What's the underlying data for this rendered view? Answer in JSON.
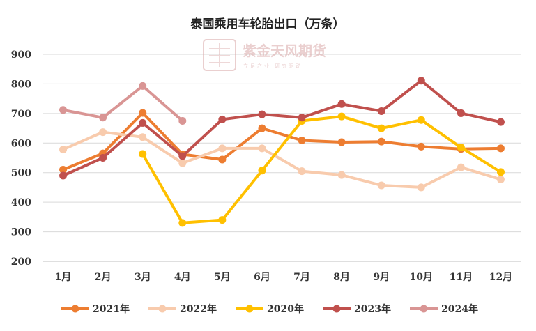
{
  "chart_data": {
    "type": "line",
    "title": "泰国乘用车轮胎出口（万条）",
    "categories": [
      "1月",
      "2月",
      "3月",
      "4月",
      "5月",
      "6月",
      "7月",
      "8月",
      "9月",
      "10月",
      "11月",
      "12月"
    ],
    "ylim": [
      200,
      900
    ],
    "yticks": [
      200,
      300,
      400,
      500,
      600,
      700,
      800,
      900
    ],
    "grid": true,
    "legend_position": "bottom",
    "series": [
      {
        "name": "2021年",
        "color": "#ed7d31",
        "values": [
          510,
          565,
          702,
          562,
          544,
          650,
          609,
          603,
          605,
          588,
          580,
          582
        ]
      },
      {
        "name": "2022年",
        "color": "#f8cbad",
        "values": [
          578,
          637,
          620,
          532,
          582,
          582,
          505,
          492,
          457,
          450,
          518,
          477
        ]
      },
      {
        "name": "2020年",
        "color": "#ffc000",
        "values": [
          null,
          null,
          563,
          330,
          340,
          507,
          675,
          690,
          650,
          678,
          585,
          502
        ]
      },
      {
        "name": "2023年",
        "color": "#c0504d",
        "values": [
          490,
          550,
          668,
          556,
          680,
          697,
          686,
          732,
          708,
          811,
          701,
          671
        ]
      },
      {
        "name": "2024年",
        "color": "#d99594",
        "values": [
          712,
          686,
          793,
          675,
          null,
          null,
          null,
          null,
          null,
          null,
          null,
          null
        ]
      }
    ]
  },
  "watermark": {
    "seal_text": "紫天金凤",
    "main_text": "紫金天风期货",
    "sub_text": "立足产业 研究驱动"
  }
}
